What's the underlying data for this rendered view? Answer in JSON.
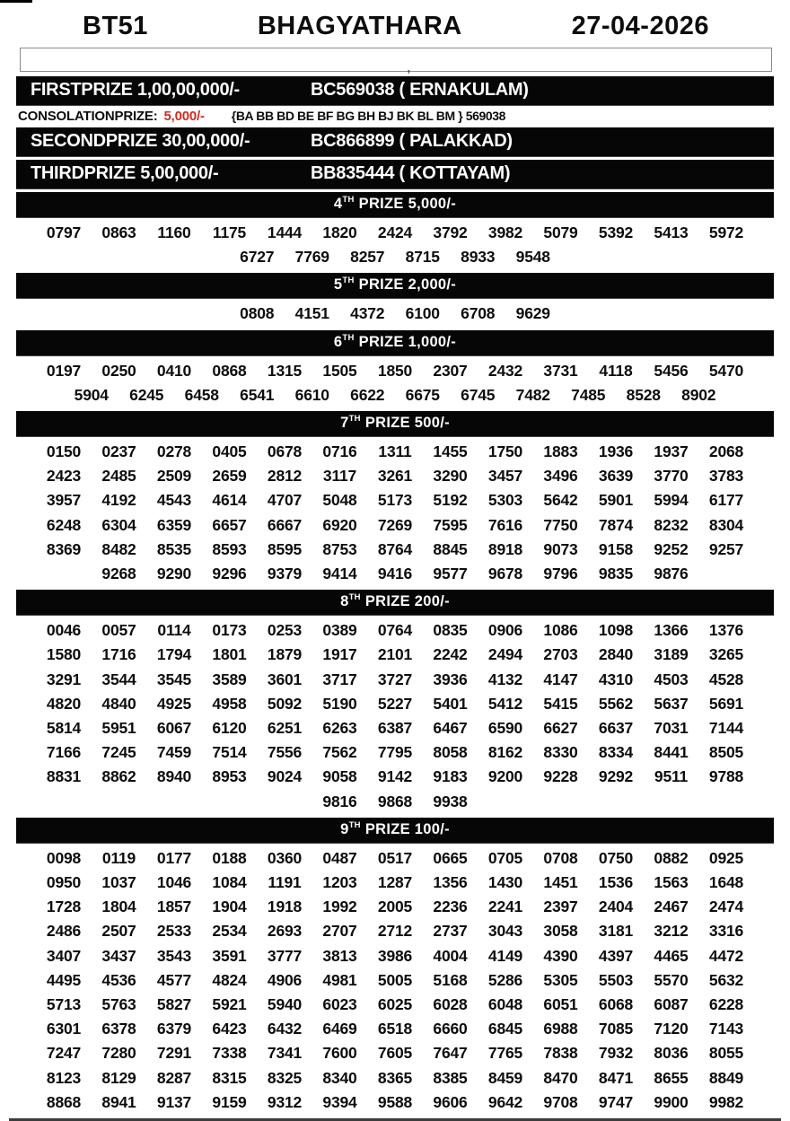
{
  "colors": {
    "bar_bg": "#060606",
    "bar_text": "#ffffff",
    "accent_red": "#cf2b24",
    "rule_gray": "#3c3c3c"
  },
  "header": {
    "code": "BT51",
    "title": "BHAGYATHARA",
    "date": "27-04-2026"
  },
  "blank_box_mark": ",",
  "top_prizes": [
    {
      "label": "FIRSTPRIZE 1,00,00,000/-",
      "winner": "BC569038 ( ERNAKULAM)"
    },
    {
      "label": "SECONDPRIZE 30,00,000/-",
      "winner": "BC866899 ( PALAKKAD)"
    },
    {
      "label": "THIRDPRIZE 5,00,000/-",
      "winner": "BB835444 ( KOTTAYAM)"
    }
  ],
  "consolation": {
    "label": "CONSOLATIONPRIZE:",
    "amount": "5,000/-",
    "series": "{BA BB BD BE BF BG BH BJ BK BL BM } 569038"
  },
  "sections": [
    {
      "num": "4",
      "sup": "TH",
      "label": "PRIZE 5,000/-",
      "rows": [
        [
          "0797",
          "0863",
          "1160",
          "1175",
          "1444",
          "1820",
          "2424",
          "3792",
          "3982",
          "5079",
          "5392",
          "5413",
          "5972"
        ],
        [
          "6727",
          "7769",
          "8257",
          "8715",
          "8933",
          "9548"
        ]
      ]
    },
    {
      "num": "5",
      "sup": "TH",
      "label": "PRIZE 2,000/-",
      "rows": [
        [
          "0808",
          "4151",
          "4372",
          "6100",
          "6708",
          "9629"
        ]
      ]
    },
    {
      "num": "6",
      "sup": "TH",
      "label": "PRIZE 1,000/-",
      "rows": [
        [
          "0197",
          "0250",
          "0410",
          "0868",
          "1315",
          "1505",
          "1850",
          "2307",
          "2432",
          "3731",
          "4118",
          "5456",
          "5470"
        ],
        [
          "5904",
          "6245",
          "6458",
          "6541",
          "6610",
          "6622",
          "6675",
          "6745",
          "7482",
          "7485",
          "8528",
          "8902"
        ]
      ]
    },
    {
      "num": "7",
      "sup": "TH",
      "label": "PRIZE 500/-",
      "rows": [
        [
          "0150",
          "0237",
          "0278",
          "0405",
          "0678",
          "0716",
          "1311",
          "1455",
          "1750",
          "1883",
          "1936",
          "1937",
          "2068"
        ],
        [
          "2423",
          "2485",
          "2509",
          "2659",
          "2812",
          "3117",
          "3261",
          "3290",
          "3457",
          "3496",
          "3639",
          "3770",
          "3783"
        ],
        [
          "3957",
          "4192",
          "4543",
          "4614",
          "4707",
          "5048",
          "5173",
          "5192",
          "5303",
          "5642",
          "5901",
          "5994",
          "6177"
        ],
        [
          "6248",
          "6304",
          "6359",
          "6657",
          "6667",
          "6920",
          "7269",
          "7595",
          "7616",
          "7750",
          "7874",
          "8232",
          "8304"
        ],
        [
          "8369",
          "8482",
          "8535",
          "8593",
          "8595",
          "8753",
          "8764",
          "8845",
          "8918",
          "9073",
          "9158",
          "9252",
          "9257"
        ],
        [
          "9268",
          "9290",
          "9296",
          "9379",
          "9414",
          "9416",
          "9577",
          "9678",
          "9796",
          "9835",
          "9876"
        ]
      ]
    },
    {
      "num": "8",
      "sup": "TH",
      "label": "PRIZE 200/-",
      "rows": [
        [
          "0046",
          "0057",
          "0114",
          "0173",
          "0253",
          "0389",
          "0764",
          "0835",
          "0906",
          "1086",
          "1098",
          "1366",
          "1376"
        ],
        [
          "1580",
          "1716",
          "1794",
          "1801",
          "1879",
          "1917",
          "2101",
          "2242",
          "2494",
          "2703",
          "2840",
          "3189",
          "3265"
        ],
        [
          "3291",
          "3544",
          "3545",
          "3589",
          "3601",
          "3717",
          "3727",
          "3936",
          "4132",
          "4147",
          "4310",
          "4503",
          "4528"
        ],
        [
          "4820",
          "4840",
          "4925",
          "4958",
          "5092",
          "5190",
          "5227",
          "5401",
          "5412",
          "5415",
          "5562",
          "5637",
          "5691"
        ],
        [
          "5814",
          "5951",
          "6067",
          "6120",
          "6251",
          "6263",
          "6387",
          "6467",
          "6590",
          "6627",
          "6637",
          "7031",
          "7144"
        ],
        [
          "7166",
          "7245",
          "7459",
          "7514",
          "7556",
          "7562",
          "7795",
          "8058",
          "8162",
          "8330",
          "8334",
          "8441",
          "8505"
        ],
        [
          "8831",
          "8862",
          "8940",
          "8953",
          "9024",
          "9058",
          "9142",
          "9183",
          "9200",
          "9228",
          "9292",
          "9511",
          "9788"
        ],
        [
          "9816",
          "9868",
          "9938"
        ]
      ]
    },
    {
      "num": "9",
      "sup": "TH",
      "label": "PRIZE 100/-",
      "rows": [
        [
          "0098",
          "0119",
          "0177",
          "0188",
          "0360",
          "0487",
          "0517",
          "0665",
          "0705",
          "0708",
          "0750",
          "0882",
          "0925"
        ],
        [
          "0950",
          "1037",
          "1046",
          "1084",
          "1191",
          "1203",
          "1287",
          "1356",
          "1430",
          "1451",
          "1536",
          "1563",
          "1648"
        ],
        [
          "1728",
          "1804",
          "1857",
          "1904",
          "1918",
          "1992",
          "2005",
          "2236",
          "2241",
          "2397",
          "2404",
          "2467",
          "2474"
        ],
        [
          "2486",
          "2507",
          "2533",
          "2534",
          "2693",
          "2707",
          "2712",
          "2737",
          "3043",
          "3058",
          "3181",
          "3212",
          "3316"
        ],
        [
          "3407",
          "3437",
          "3543",
          "3591",
          "3777",
          "3813",
          "3986",
          "4004",
          "4149",
          "4390",
          "4397",
          "4465",
          "4472"
        ],
        [
          "4495",
          "4536",
          "4577",
          "4824",
          "4906",
          "4981",
          "5005",
          "5168",
          "5286",
          "5305",
          "5503",
          "5570",
          "5632"
        ],
        [
          "5713",
          "5763",
          "5827",
          "5921",
          "5940",
          "6023",
          "6025",
          "6028",
          "6048",
          "6051",
          "6068",
          "6087",
          "6228"
        ],
        [
          "6301",
          "6378",
          "6379",
          "6423",
          "6432",
          "6469",
          "6518",
          "6660",
          "6845",
          "6988",
          "7085",
          "7120",
          "7143"
        ],
        [
          "7247",
          "7280",
          "7291",
          "7338",
          "7341",
          "7600",
          "7605",
          "7647",
          "7765",
          "7838",
          "7932",
          "8036",
          "8055"
        ],
        [
          "8123",
          "8129",
          "8287",
          "8315",
          "8325",
          "8340",
          "8365",
          "8385",
          "8459",
          "8470",
          "8471",
          "8655",
          "8849"
        ],
        [
          "8868",
          "8941",
          "9137",
          "9159",
          "9312",
          "9394",
          "9588",
          "9606",
          "9642",
          "9708",
          "9747",
          "9900",
          "9982"
        ]
      ]
    }
  ]
}
